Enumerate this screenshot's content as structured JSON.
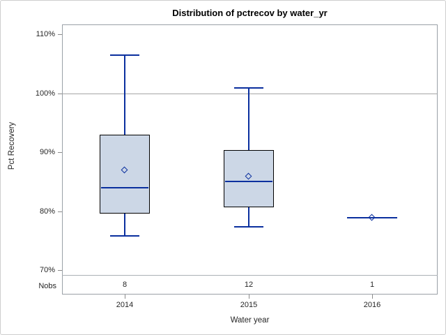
{
  "chart_data": {
    "type": "boxplot",
    "title": "Distribution of pctrecov by water_yr",
    "xlabel": "Water year",
    "ylabel": "Pct Recovery",
    "categories": [
      "2014",
      "2015",
      "2016"
    ],
    "nobs": {
      "label": "Nobs",
      "values": [
        "8",
        "12",
        "1"
      ]
    },
    "yticks": [
      {
        "value": 110,
        "label": "110%"
      },
      {
        "value": 100,
        "label": "100%"
      },
      {
        "value": 90,
        "label": "90%"
      },
      {
        "value": 80,
        "label": "80%"
      },
      {
        "value": 70,
        "label": "70%"
      }
    ],
    "ylim": [
      69,
      111.7
    ],
    "reference_line": {
      "value": 100
    },
    "grid": "reference-line-only",
    "legend": "none",
    "boxes": [
      {
        "category": "2014",
        "nobs": 8,
        "whisker_low": 75.8,
        "q1": 79.6,
        "median": 84.0,
        "mean": 86.9,
        "q3": 93.0,
        "whisker_high": 106.4
      },
      {
        "category": "2015",
        "nobs": 12,
        "whisker_low": 77.3,
        "q1": 80.7,
        "median": 85.0,
        "mean": 85.9,
        "q3": 90.4,
        "whisker_high": 100.9
      },
      {
        "category": "2016",
        "nobs": 1,
        "single_value": 78.9,
        "mean": 78.9
      }
    ],
    "colors": {
      "box_fill": "#ccd7e6",
      "box_border": "#000000",
      "line": "#0a2f9e",
      "reference_line": "#a6a6a6",
      "axis_line": "#9aa0a6",
      "tick": "#8a8a8a",
      "divider": "#aab0b5",
      "text": "#262626"
    }
  }
}
